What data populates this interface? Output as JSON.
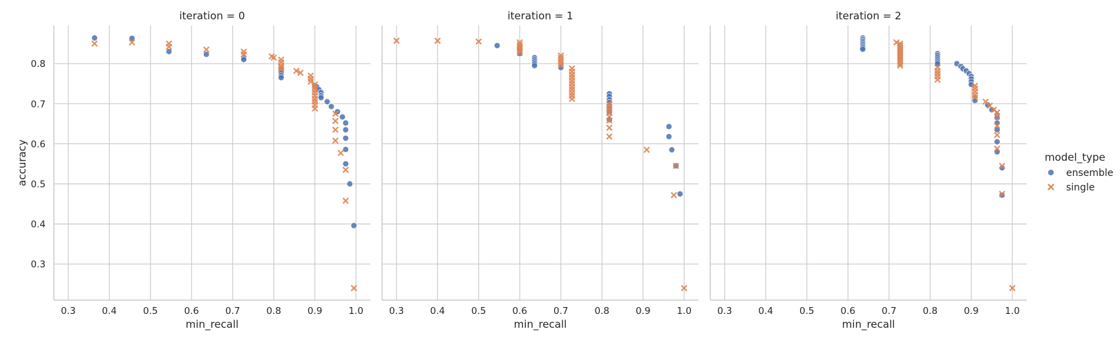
{
  "chart_data": {
    "type": "scatter",
    "facet_variable": "iteration",
    "xlabel": "min_recall",
    "ylabel": "accuracy",
    "xlim": [
      0.265,
      1.035
    ],
    "ylim": [
      0.21,
      0.895
    ],
    "x_ticks": [
      0.3,
      0.4,
      0.5,
      0.6,
      0.7,
      0.8,
      0.9,
      1.0
    ],
    "x_tick_labels": [
      "0.3",
      "0.4",
      "0.5",
      "0.6",
      "0.7",
      "0.8",
      "0.9",
      "1.0"
    ],
    "y_ticks": [
      0.3,
      0.4,
      0.5,
      0.6,
      0.7,
      0.8
    ],
    "y_tick_labels": [
      "0.3",
      "0.4",
      "0.5",
      "0.6",
      "0.7",
      "0.8"
    ],
    "grid": true,
    "legend": {
      "title": "model_type",
      "placement": "right",
      "entries": [
        {
          "label": "ensemble",
          "color": "#4c72b0",
          "marker": "circle"
        },
        {
          "label": "single",
          "color": "#dd8452",
          "marker": "x"
        }
      ]
    },
    "panels": [
      {
        "title": "iteration = 0",
        "series": [
          {
            "name": "ensemble",
            "points": [
              [
                0.364,
                0.864
              ],
              [
                0.455,
                0.863
              ],
              [
                0.545,
                0.83
              ],
              [
                0.636,
                0.823
              ],
              [
                0.727,
                0.815
              ],
              [
                0.727,
                0.81
              ],
              [
                0.818,
                0.785
              ],
              [
                0.818,
                0.78
              ],
              [
                0.818,
                0.775
              ],
              [
                0.818,
                0.77
              ],
              [
                0.818,
                0.765
              ],
              [
                0.9,
                0.745
              ],
              [
                0.905,
                0.742
              ],
              [
                0.91,
                0.735
              ],
              [
                0.915,
                0.728
              ],
              [
                0.915,
                0.72
              ],
              [
                0.915,
                0.715
              ],
              [
                0.93,
                0.705
              ],
              [
                0.94,
                0.693
              ],
              [
                0.955,
                0.68
              ],
              [
                0.967,
                0.667
              ],
              [
                0.975,
                0.652
              ],
              [
                0.975,
                0.635
              ],
              [
                0.975,
                0.614
              ],
              [
                0.975,
                0.586
              ],
              [
                0.975,
                0.55
              ],
              [
                0.985,
                0.5
              ],
              [
                0.995,
                0.396
              ]
            ]
          },
          {
            "name": "single",
            "points": [
              [
                0.364,
                0.85
              ],
              [
                0.455,
                0.853
              ],
              [
                0.545,
                0.85
              ],
              [
                0.545,
                0.842
              ],
              [
                0.636,
                0.835
              ],
              [
                0.727,
                0.83
              ],
              [
                0.727,
                0.823
              ],
              [
                0.795,
                0.818
              ],
              [
                0.8,
                0.815
              ],
              [
                0.818,
                0.81
              ],
              [
                0.818,
                0.803
              ],
              [
                0.818,
                0.795
              ],
              [
                0.818,
                0.79
              ],
              [
                0.818,
                0.785
              ],
              [
                0.855,
                0.782
              ],
              [
                0.865,
                0.777
              ],
              [
                0.89,
                0.77
              ],
              [
                0.89,
                0.762
              ],
              [
                0.89,
                0.755
              ],
              [
                0.9,
                0.748
              ],
              [
                0.9,
                0.742
              ],
              [
                0.9,
                0.735
              ],
              [
                0.9,
                0.728
              ],
              [
                0.9,
                0.72
              ],
              [
                0.9,
                0.712
              ],
              [
                0.9,
                0.705
              ],
              [
                0.9,
                0.697
              ],
              [
                0.9,
                0.688
              ],
              [
                0.95,
                0.675
              ],
              [
                0.95,
                0.657
              ],
              [
                0.95,
                0.635
              ],
              [
                0.95,
                0.608
              ],
              [
                0.963,
                0.577
              ],
              [
                0.975,
                0.535
              ],
              [
                0.975,
                0.458
              ],
              [
                0.995,
                0.24
              ]
            ]
          }
        ]
      },
      {
        "title": "iteration = 1",
        "series": [
          {
            "name": "ensemble",
            "points": [
              [
                0.545,
                0.845
              ],
              [
                0.6,
                0.84
              ],
              [
                0.6,
                0.835
              ],
              [
                0.6,
                0.83
              ],
              [
                0.6,
                0.825
              ],
              [
                0.636,
                0.815
              ],
              [
                0.636,
                0.81
              ],
              [
                0.636,
                0.805
              ],
              [
                0.636,
                0.8
              ],
              [
                0.636,
                0.795
              ],
              [
                0.7,
                0.79
              ],
              [
                0.818,
                0.725
              ],
              [
                0.818,
                0.718
              ],
              [
                0.818,
                0.71
              ],
              [
                0.818,
                0.703
              ],
              [
                0.818,
                0.695
              ],
              [
                0.818,
                0.688
              ],
              [
                0.818,
                0.68
              ],
              [
                0.818,
                0.66
              ],
              [
                0.963,
                0.643
              ],
              [
                0.963,
                0.618
              ],
              [
                0.97,
                0.585
              ],
              [
                0.98,
                0.545
              ],
              [
                0.99,
                0.475
              ]
            ]
          },
          {
            "name": "single",
            "points": [
              [
                0.3,
                0.857
              ],
              [
                0.4,
                0.857
              ],
              [
                0.5,
                0.855
              ],
              [
                0.6,
                0.853
              ],
              [
                0.6,
                0.847
              ],
              [
                0.6,
                0.842
              ],
              [
                0.6,
                0.838
              ],
              [
                0.6,
                0.832
              ],
              [
                0.6,
                0.827
              ],
              [
                0.7,
                0.82
              ],
              [
                0.7,
                0.814
              ],
              [
                0.7,
                0.808
              ],
              [
                0.7,
                0.802
              ],
              [
                0.7,
                0.796
              ],
              [
                0.727,
                0.788
              ],
              [
                0.727,
                0.78
              ],
              [
                0.727,
                0.772
              ],
              [
                0.727,
                0.765
              ],
              [
                0.727,
                0.757
              ],
              [
                0.727,
                0.75
              ],
              [
                0.727,
                0.742
              ],
              [
                0.727,
                0.735
              ],
              [
                0.727,
                0.727
              ],
              [
                0.727,
                0.72
              ],
              [
                0.727,
                0.712
              ],
              [
                0.818,
                0.7
              ],
              [
                0.818,
                0.692
              ],
              [
                0.818,
                0.685
              ],
              [
                0.818,
                0.677
              ],
              [
                0.818,
                0.668
              ],
              [
                0.818,
                0.658
              ],
              [
                0.818,
                0.64
              ],
              [
                0.818,
                0.618
              ],
              [
                0.909,
                0.585
              ],
              [
                0.98,
                0.545
              ],
              [
                0.975,
                0.472
              ],
              [
                1.0,
                0.24
              ]
            ]
          }
        ]
      },
      {
        "title": "iteration = 2",
        "series": [
          {
            "name": "ensemble",
            "points": [
              [
                0.636,
                0.864
              ],
              [
                0.636,
                0.86
              ],
              [
                0.636,
                0.856
              ],
              [
                0.636,
                0.852
              ],
              [
                0.636,
                0.848
              ],
              [
                0.636,
                0.844
              ],
              [
                0.636,
                0.84
              ],
              [
                0.636,
                0.836
              ],
              [
                0.818,
                0.825
              ],
              [
                0.818,
                0.82
              ],
              [
                0.818,
                0.815
              ],
              [
                0.818,
                0.81
              ],
              [
                0.818,
                0.805
              ],
              [
                0.818,
                0.8
              ],
              [
                0.865,
                0.8
              ],
              [
                0.875,
                0.793
              ],
              [
                0.88,
                0.787
              ],
              [
                0.888,
                0.782
              ],
              [
                0.895,
                0.775
              ],
              [
                0.9,
                0.768
              ],
              [
                0.9,
                0.762
              ],
              [
                0.9,
                0.755
              ],
              [
                0.9,
                0.748
              ],
              [
                0.909,
                0.715
              ],
              [
                0.909,
                0.708
              ],
              [
                0.94,
                0.697
              ],
              [
                0.95,
                0.685
              ],
              [
                0.963,
                0.672
              ],
              [
                0.963,
                0.665
              ],
              [
                0.963,
                0.652
              ],
              [
                0.963,
                0.635
              ],
              [
                0.963,
                0.605
              ],
              [
                0.963,
                0.58
              ],
              [
                0.975,
                0.54
              ],
              [
                0.975,
                0.472
              ]
            ]
          },
          {
            "name": "single",
            "points": [
              [
                0.718,
                0.853
              ],
              [
                0.727,
                0.85
              ],
              [
                0.727,
                0.845
              ],
              [
                0.727,
                0.84
              ],
              [
                0.727,
                0.835
              ],
              [
                0.727,
                0.83
              ],
              [
                0.727,
                0.825
              ],
              [
                0.727,
                0.82
              ],
              [
                0.727,
                0.815
              ],
              [
                0.727,
                0.81
              ],
              [
                0.727,
                0.805
              ],
              [
                0.727,
                0.8
              ],
              [
                0.727,
                0.795
              ],
              [
                0.818,
                0.79
              ],
              [
                0.818,
                0.782
              ],
              [
                0.818,
                0.775
              ],
              [
                0.818,
                0.768
              ],
              [
                0.818,
                0.76
              ],
              [
                0.909,
                0.745
              ],
              [
                0.909,
                0.738
              ],
              [
                0.909,
                0.73
              ],
              [
                0.909,
                0.722
              ],
              [
                0.909,
                0.715
              ],
              [
                0.935,
                0.705
              ],
              [
                0.945,
                0.695
              ],
              [
                0.955,
                0.685
              ],
              [
                0.963,
                0.678
              ],
              [
                0.963,
                0.668
              ],
              [
                0.963,
                0.645
              ],
              [
                0.963,
                0.622
              ],
              [
                0.963,
                0.588
              ],
              [
                0.975,
                0.545
              ],
              [
                0.975,
                0.475
              ],
              [
                1.0,
                0.24
              ]
            ]
          }
        ]
      }
    ]
  }
}
